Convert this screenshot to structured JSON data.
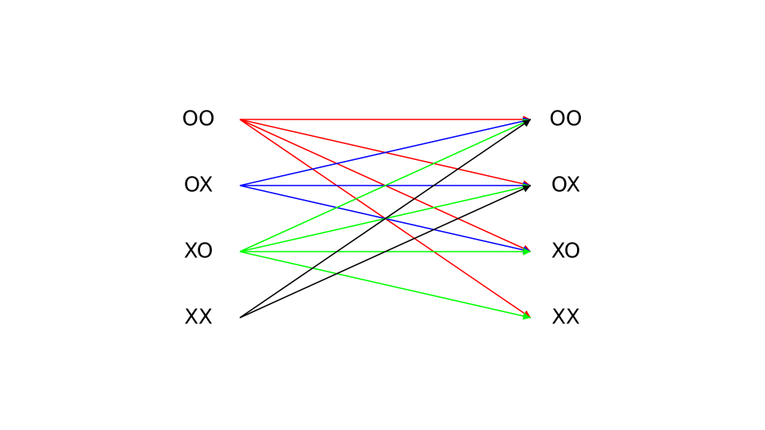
{
  "left_states": [
    "OO",
    "OX",
    "XO",
    "XX"
  ],
  "right_states": [
    "OO",
    "OX",
    "XO",
    "XX"
  ],
  "colors": {
    "OO": "#ff0000",
    "OX": "#0000ff",
    "XO": "#00ff00",
    "XX": "#000000"
  },
  "transitions": [
    {
      "from": "OO",
      "to": "OO"
    },
    {
      "from": "OO",
      "to": "OX"
    },
    {
      "from": "OO",
      "to": "XO"
    },
    {
      "from": "OO",
      "to": "XX"
    },
    {
      "from": "OX",
      "to": "OO"
    },
    {
      "from": "OX",
      "to": "OX"
    },
    {
      "from": "OX",
      "to": "XO"
    },
    {
      "from": "XO",
      "to": "OO"
    },
    {
      "from": "XO",
      "to": "OX"
    },
    {
      "from": "XO",
      "to": "XO"
    },
    {
      "from": "XO",
      "to": "XX"
    },
    {
      "from": "XX",
      "to": "OO"
    },
    {
      "from": "XX",
      "to": "OX"
    }
  ]
}
